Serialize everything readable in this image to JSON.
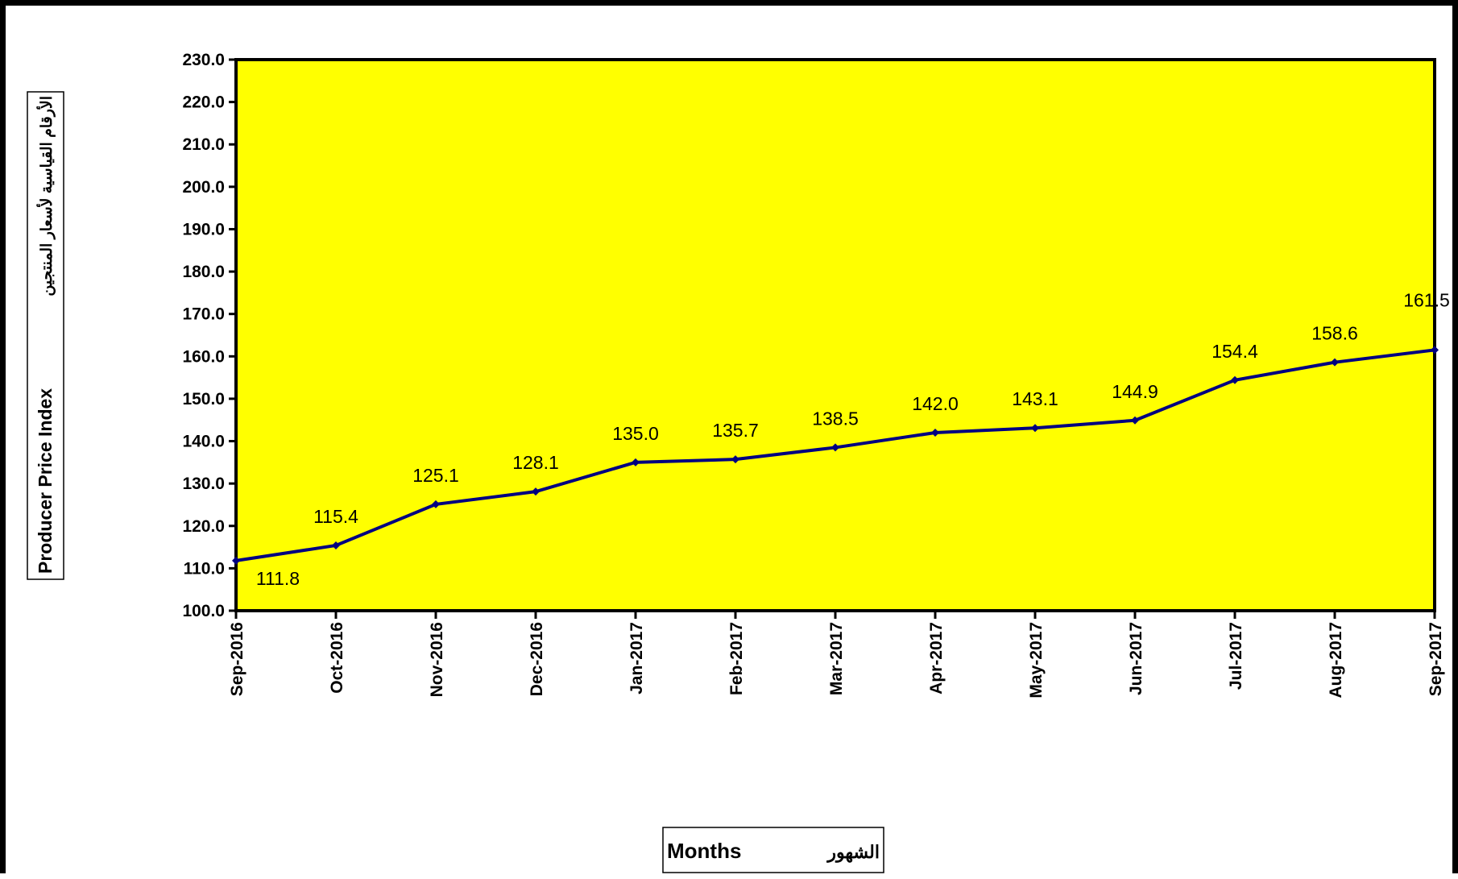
{
  "chart_data": {
    "type": "line",
    "categories": [
      "Sep-2016",
      "Oct-2016",
      "Nov-2016",
      "Dec-2016",
      "Jan-2017",
      "Feb-2017",
      "Mar-2017",
      "Apr-2017",
      "May-2017",
      "Jun-2017",
      "Jul-2017",
      "Aug-2017",
      "Sep-2017"
    ],
    "values": [
      111.8,
      115.4,
      125.1,
      128.1,
      135.0,
      135.7,
      138.5,
      142.0,
      143.1,
      144.9,
      154.4,
      158.6,
      161.5
    ],
    "data_labels": [
      "111.8",
      "115.4",
      "125.1",
      "128.1",
      "135.0",
      "135.7",
      "138.5",
      "142.0",
      "143.1",
      "144.9",
      "154.4",
      "158.6",
      "161.5"
    ],
    "yticks": [
      "100.0",
      "110.0",
      "120.0",
      "130.0",
      "140.0",
      "150.0",
      "160.0",
      "170.0",
      "180.0",
      "190.0",
      "200.0",
      "210.0",
      "220.0",
      "230.0"
    ],
    "ylim": [
      100,
      230
    ],
    "xlabel_en": "Months",
    "xlabel_ar": "الشهور",
    "ylabel_en": "Producer Price Index",
    "ylabel_ar": "الأرقام القياسية لأسعار المنتجين",
    "grid": false,
    "plot_background": "#FFFF00",
    "line_color": "#000080"
  }
}
